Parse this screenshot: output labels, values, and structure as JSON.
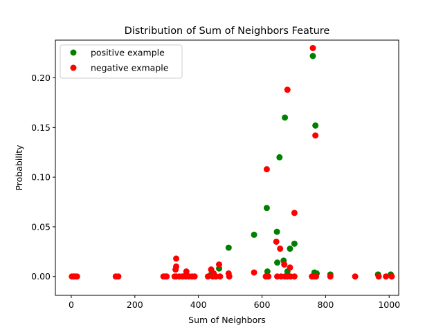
{
  "chart_data": {
    "type": "scatter",
    "title": "Distribution of Sum of Neighbors Feature",
    "xlabel": "Sum of Neighbors",
    "ylabel": "Probability",
    "xlim": [
      -50,
      1030
    ],
    "ylim": [
      -0.019,
      0.238
    ],
    "xticks": [
      0,
      200,
      400,
      600,
      800,
      1000
    ],
    "xtick_labels": [
      "0",
      "200",
      "400",
      "600",
      "800",
      "1000"
    ],
    "yticks": [
      0.0,
      0.05,
      0.1,
      0.15,
      0.2
    ],
    "ytick_labels": [
      "0.00",
      "0.05",
      "0.10",
      "0.15",
      "0.20"
    ],
    "grid": false,
    "legend_position": "top-left",
    "series": [
      {
        "name": "positive example",
        "color": "#008000",
        "points": [
          [
            760,
            0.222
          ],
          [
            768,
            0.152
          ],
          [
            672,
            0.16
          ],
          [
            655,
            0.12
          ],
          [
            615,
            0.069
          ],
          [
            575,
            0.042
          ],
          [
            647,
            0.045
          ],
          [
            702,
            0.033
          ],
          [
            495,
            0.029
          ],
          [
            688,
            0.028
          ],
          [
            668,
            0.016
          ],
          [
            648,
            0.014
          ],
          [
            465,
            0.008
          ],
          [
            617,
            0.005
          ],
          [
            680,
            0.005
          ],
          [
            765,
            0.004
          ],
          [
            772,
            0.003
          ],
          [
            815,
            0.002
          ],
          [
            965,
            0.002
          ],
          [
            1005,
            0.002
          ],
          [
            440,
            0.002
          ],
          [
            362,
            0.002
          ]
        ]
      },
      {
        "name": "negative exmaple",
        "color": "#ff0000",
        "points": [
          [
            760,
            0.23
          ],
          [
            680,
            0.188
          ],
          [
            768,
            0.142
          ],
          [
            615,
            0.108
          ],
          [
            702,
            0.064
          ],
          [
            645,
            0.035
          ],
          [
            657,
            0.028
          ],
          [
            330,
            0.018
          ],
          [
            465,
            0.012
          ],
          [
            670,
            0.012
          ],
          [
            330,
            0.01
          ],
          [
            688,
            0.009
          ],
          [
            328,
            0.007
          ],
          [
            440,
            0.007
          ],
          [
            575,
            0.004
          ],
          [
            362,
            0.005
          ],
          [
            495,
            0.003
          ],
          [
            448,
            0.003
          ],
          [
            2,
            0
          ],
          [
            8,
            0
          ],
          [
            12,
            0
          ],
          [
            18,
            0
          ],
          [
            140,
            0
          ],
          [
            148,
            0
          ],
          [
            290,
            0
          ],
          [
            295,
            0
          ],
          [
            300,
            0
          ],
          [
            325,
            0
          ],
          [
            330,
            0
          ],
          [
            340,
            0
          ],
          [
            350,
            0
          ],
          [
            360,
            0
          ],
          [
            370,
            0
          ],
          [
            380,
            0
          ],
          [
            388,
            0
          ],
          [
            430,
            0
          ],
          [
            445,
            0
          ],
          [
            455,
            0
          ],
          [
            468,
            0
          ],
          [
            497,
            0
          ],
          [
            612,
            0
          ],
          [
            620,
            0
          ],
          [
            648,
            0
          ],
          [
            660,
            0
          ],
          [
            672,
            0
          ],
          [
            680,
            0
          ],
          [
            690,
            0
          ],
          [
            702,
            0
          ],
          [
            757,
            0
          ],
          [
            764,
            0
          ],
          [
            770,
            0
          ],
          [
            815,
            0
          ],
          [
            893,
            0
          ],
          [
            967,
            0
          ],
          [
            990,
            0
          ],
          [
            1008,
            0
          ]
        ]
      }
    ]
  }
}
